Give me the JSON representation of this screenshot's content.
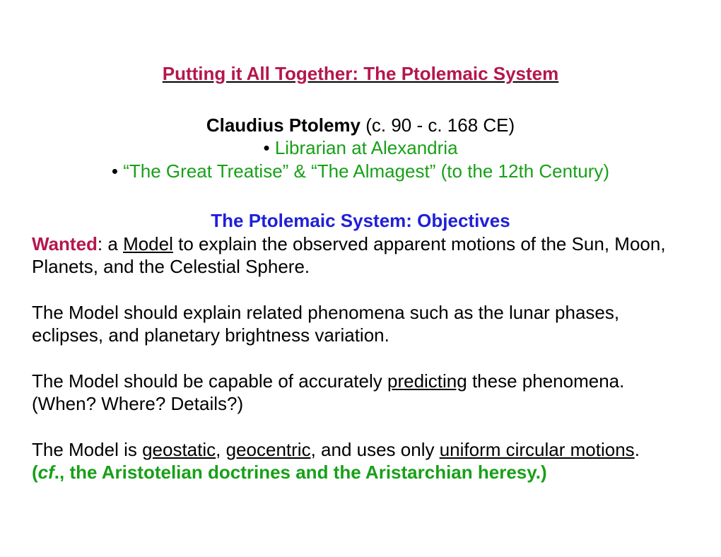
{
  "colors": {
    "title": "#b5164e",
    "black": "#000000",
    "green": "#18a018",
    "blue": "#2020d8"
  },
  "title": "Putting it All Together:  The Ptolemaic System",
  "subtitle": {
    "name_bold": "Claudius Ptolemy",
    "name_rest": " (c. 90 - c. 168 CE)"
  },
  "bullets": {
    "b1": "Librarian at Alexandria",
    "b2": "“The Great Treatise” & “The Almagest” (to the 12th Century)"
  },
  "section_header": "The Ptolemaic System: Objectives",
  "para1": {
    "wanted": "Wanted",
    "after_wanted": ": a ",
    "model": "Model",
    "rest": " to explain the observed apparent motions of the Sun, Moon, Planets, and the Celestial Sphere."
  },
  "para2": "The Model should explain related phenomena such as the lunar phases, eclipses, and planetary brightness variation.",
  "para3": {
    "before": "The Model should be capable of accurately ",
    "predicting": "predicting",
    "after": " these phenomena. (When? Where? Details?)"
  },
  "para4": {
    "t1": "The Model is ",
    "geostatic": "geostatic",
    "t2": ", ",
    "geocentric": "geocentric",
    "t3": ", and uses only ",
    "uniform": "uniform circular motions",
    "t4": "."
  },
  "footnote": {
    "pre": "  (",
    "cf": "cf",
    "rest": "., the Aristotelian doctrines and the Aristarchian heresy.)"
  }
}
